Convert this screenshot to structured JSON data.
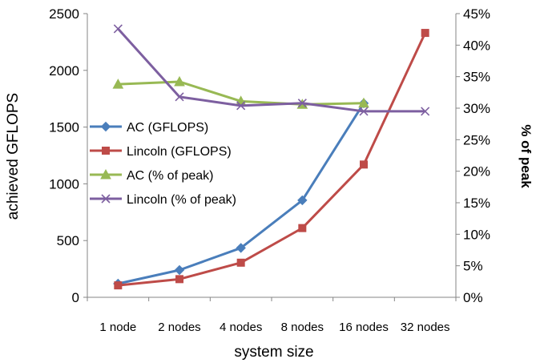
{
  "chart_data": {
    "type": "line",
    "title": "",
    "xlabel": "system size",
    "ylabel": "achieved GFLOPS",
    "y2label": "% of peak",
    "categories": [
      "1 node",
      "2 nodes",
      "4 nodes",
      "8 nodes",
      "16 nodes",
      "32 nodes"
    ],
    "ylim": [
      0,
      2500
    ],
    "y2lim": [
      0,
      45
    ],
    "yticks": [
      "0",
      "500",
      "1000",
      "1500",
      "2000",
      "2500"
    ],
    "y2ticks": [
      "0%",
      "5%",
      "10%",
      "15%",
      "20%",
      "25%",
      "30%",
      "35%",
      "40%",
      "45%"
    ],
    "grid": false,
    "legend_position": "left",
    "series": [
      {
        "name": "AC (GFLOPS)",
        "axis": "left",
        "marker": "diamond",
        "color": "#4a7ebb",
        "values": [
          120,
          240,
          435,
          855,
          1710,
          null
        ]
      },
      {
        "name": "Lincoln (GFLOPS)",
        "axis": "left",
        "marker": "square",
        "color": "#be4b48",
        "values": [
          105,
          160,
          305,
          610,
          1170,
          2330
        ]
      },
      {
        "name": "AC (% of peak)",
        "axis": "right",
        "marker": "triangle",
        "color": "#98b954",
        "values": [
          33.8,
          34.2,
          31.1,
          30.6,
          30.8,
          null
        ]
      },
      {
        "name": "Lincoln (% of peak)",
        "axis": "right",
        "marker": "x",
        "color": "#7d5fa0",
        "values": [
          42.6,
          31.8,
          30.4,
          30.8,
          29.5,
          29.5
        ]
      }
    ]
  }
}
